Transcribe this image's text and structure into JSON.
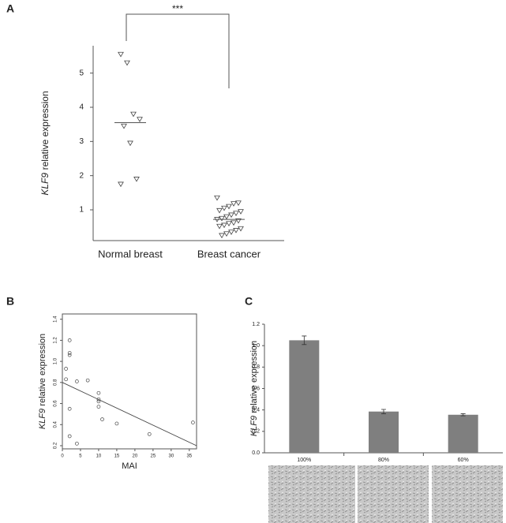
{
  "chart_data": [
    {
      "type": "strip",
      "panel": "A",
      "ylabel": {
        "gene": "KLF9",
        "text": "relative expression"
      },
      "categories": [
        "Normal breast",
        "Breast cancer"
      ],
      "groups": [
        [
          5.55,
          5.3,
          3.8,
          3.65,
          3.45,
          2.95,
          1.9,
          1.75
        ],
        [
          1.35,
          1.2,
          1.18,
          1.1,
          1.05,
          0.98,
          0.95,
          0.9,
          0.85,
          0.8,
          0.75,
          0.72,
          0.68,
          0.62,
          0.6,
          0.55,
          0.52,
          0.45,
          0.4,
          0.35,
          0.3,
          0.25
        ]
      ],
      "means": [
        3.55,
        0.72
      ],
      "annotation": "***",
      "ylim": [
        0.1,
        5.8
      ],
      "yticks": [
        1,
        2,
        3,
        4,
        5
      ],
      "color": "#444444"
    },
    {
      "type": "scatter",
      "panel": "B",
      "ylabel": {
        "gene": "KLF9",
        "text": "relative expression"
      },
      "xlabel": "MAI",
      "x": [
        2,
        2,
        2,
        1,
        1,
        4,
        7,
        10,
        10,
        10,
        10,
        2,
        11,
        15,
        24,
        36,
        2,
        4
      ],
      "y": [
        1.2,
        1.08,
        1.06,
        0.93,
        0.83,
        0.81,
        0.82,
        0.7,
        0.64,
        0.62,
        0.57,
        0.55,
        0.45,
        0.41,
        0.31,
        0.42,
        0.29,
        0.22
      ],
      "fit": {
        "x": [
          0,
          37
        ],
        "y": [
          0.8,
          0.2
        ]
      },
      "xlim": [
        0,
        37
      ],
      "ylim": [
        0.17,
        1.45
      ],
      "xticks": [
        0,
        5,
        10,
        15,
        20,
        25,
        30,
        35
      ],
      "yticks": [
        0.2,
        0.4,
        0.6,
        0.8,
        {
          "value": 1,
          "label": "1.0"
        },
        1.2,
        1.4
      ],
      "color": "#444444"
    },
    {
      "type": "bar",
      "panel": "C",
      "ylabel": {
        "gene": "KLF9",
        "text": "relative expression"
      },
      "categories": [
        "100%",
        "80%",
        "60%"
      ],
      "values": [
        1.05,
        0.385,
        0.355
      ],
      "errors": [
        0.04,
        0.02,
        0.01
      ],
      "ylim": [
        0,
        1.2
      ],
      "yticks": [
        {
          "value": 0,
          "label": "0.0"
        },
        0.2,
        0.4,
        0.6,
        0.8,
        {
          "value": 1,
          "label": "1.0"
        },
        1.2
      ],
      "color": "#7f7f7f"
    }
  ]
}
